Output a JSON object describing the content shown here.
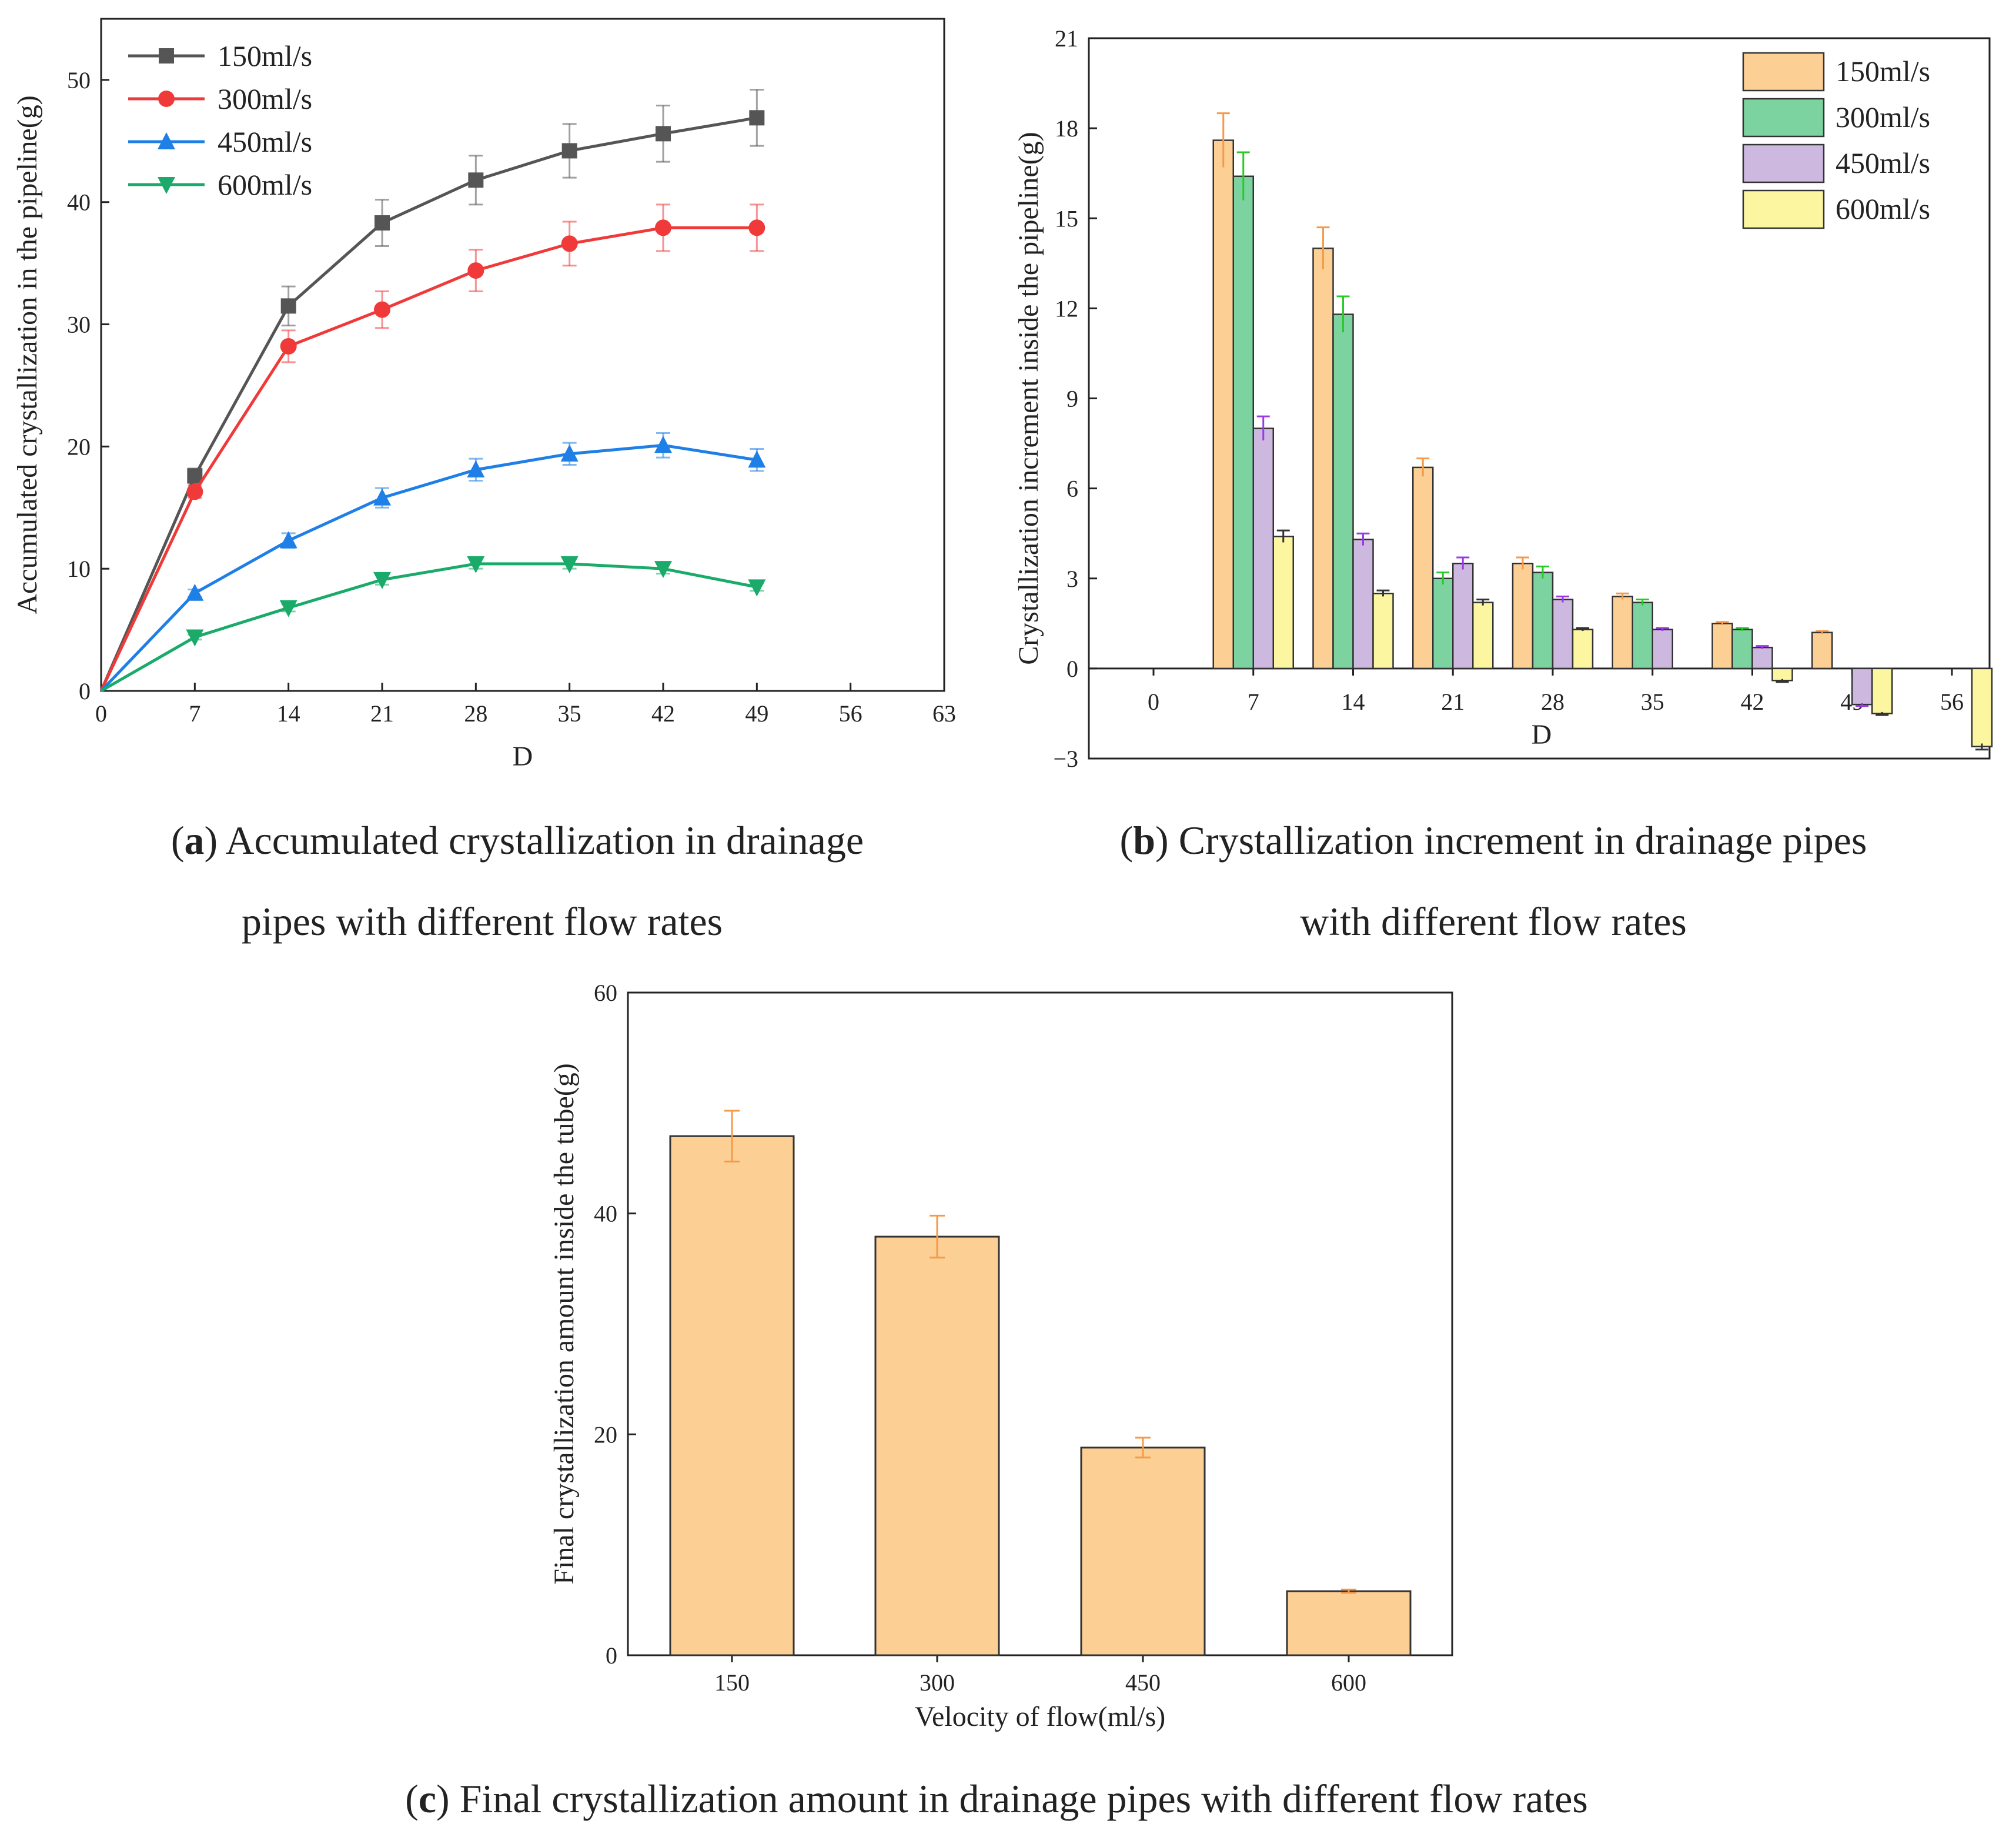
{
  "chart_data": [
    {
      "id": "a",
      "type": "line",
      "xlabel": "D",
      "ylabel": "Accumulated crystallization in the pipeline(g)",
      "xlim": [
        0,
        63
      ],
      "ylim": [
        0,
        55
      ],
      "xticks": [
        "0",
        "7",
        "14",
        "21",
        "28",
        "35",
        "42",
        "49",
        "56",
        "63"
      ],
      "yticks": [
        "0",
        "10",
        "20",
        "30",
        "40",
        "50"
      ],
      "legend_position": "top-left",
      "x": [
        0,
        7,
        14,
        21,
        28,
        35,
        42,
        49
      ],
      "series": [
        {
          "name": "150ml/s",
          "color": "#555555",
          "marker": "square",
          "values": [
            0,
            17.6,
            31.5,
            38.3,
            41.8,
            44.2,
            45.6,
            46.9
          ],
          "errors": [
            0,
            0.6,
            1.6,
            1.9,
            2.0,
            2.2,
            2.3,
            2.3
          ]
        },
        {
          "name": "300ml/s",
          "color": "#f03a3a",
          "marker": "circle",
          "values": [
            0,
            16.3,
            28.2,
            31.2,
            34.4,
            36.6,
            37.9,
            37.9
          ],
          "errors": [
            0,
            0.5,
            1.3,
            1.5,
            1.7,
            1.8,
            1.9,
            1.9
          ]
        },
        {
          "name": "450ml/s",
          "color": "#1e7fe6",
          "marker": "triangle-up",
          "values": [
            0,
            8.0,
            12.3,
            15.8,
            18.1,
            19.4,
            20.1,
            18.9
          ],
          "errors": [
            0,
            0.3,
            0.6,
            0.8,
            0.9,
            0.9,
            1.0,
            0.9
          ]
        },
        {
          "name": "600ml/s",
          "color": "#1aaa6a",
          "marker": "triangle-down",
          "values": [
            0,
            4.4,
            6.8,
            9.1,
            10.4,
            10.4,
            10.0,
            8.5
          ],
          "errors": [
            0,
            0.2,
            0.3,
            0.4,
            0.4,
            0.4,
            0.4,
            0.3
          ]
        }
      ]
    },
    {
      "id": "b",
      "type": "bar",
      "xlabel": "D",
      "ylabel": "Crystallization increment inside the pipeline(g)",
      "ylim": [
        -3,
        21
      ],
      "yticks": [
        "-3",
        "0",
        "3",
        "6",
        "9",
        "12",
        "15",
        "18",
        "21"
      ],
      "categories": [
        "0",
        "7",
        "14",
        "21",
        "28",
        "35",
        "42",
        "49",
        "56"
      ],
      "legend_position": "top-right",
      "series": [
        {
          "name": "150ml/s",
          "color": "#fccf94",
          "err_color": "#f59a4a",
          "values": [
            0,
            17.6,
            14.0,
            6.7,
            3.5,
            2.4,
            1.5,
            1.2,
            0
          ],
          "errors": [
            0,
            0.9,
            0.7,
            0.3,
            0.2,
            0.1,
            0.05,
            0.05,
            0
          ]
        },
        {
          "name": "300ml/s",
          "color": "#7dd3a0",
          "err_color": "#2ac92a",
          "values": [
            0,
            16.4,
            11.8,
            3.0,
            3.2,
            2.2,
            1.3,
            0,
            0
          ],
          "errors": [
            0,
            0.8,
            0.6,
            0.2,
            0.2,
            0.1,
            0.05,
            0,
            0
          ]
        },
        {
          "name": "450ml/s",
          "color": "#cdb8e0",
          "err_color": "#9a3ae6",
          "values": [
            0,
            8.0,
            4.3,
            3.5,
            2.3,
            1.3,
            0.7,
            -1.2,
            0
          ],
          "errors": [
            0,
            0.4,
            0.2,
            0.2,
            0.1,
            0.05,
            0.05,
            0.05,
            0
          ]
        },
        {
          "name": "600ml/s",
          "color": "#fdf6a0",
          "err_color": "#333333",
          "values": [
            0,
            4.4,
            2.5,
            2.2,
            1.3,
            0,
            -0.4,
            -1.5,
            -2.6
          ],
          "errors": [
            0,
            0.2,
            0.1,
            0.1,
            0.05,
            0,
            0.05,
            0.05,
            0.1
          ]
        }
      ]
    },
    {
      "id": "c",
      "type": "bar",
      "xlabel": "Velocity of flow(ml/s)",
      "ylabel": "Final crystallization amount inside the tube(g)",
      "ylim": [
        0,
        60
      ],
      "yticks": [
        "0",
        "20",
        "40",
        "60"
      ],
      "categories": [
        "150",
        "300",
        "450",
        "600"
      ],
      "bar_color": "#fccf94",
      "err_color": "#f59a4a",
      "values": [
        47.0,
        37.9,
        18.8,
        5.8
      ],
      "errors": [
        2.3,
        1.9,
        0.9,
        0.15
      ]
    }
  ],
  "captions": {
    "a": {
      "label": "a",
      "line1": " Accumulated crystallization in drainage",
      "line2": "pipes with different flow rates"
    },
    "b": {
      "label": "b",
      "line1": " Crystallization increment in drainage pipes",
      "line2": "with different flow rates"
    },
    "c": {
      "label": "c",
      "line1": " Final crystallization amount in drainage pipes with different flow rates"
    }
  }
}
